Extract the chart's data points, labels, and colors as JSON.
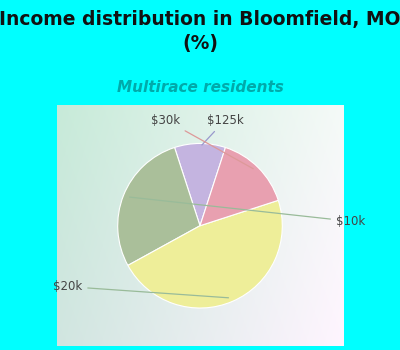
{
  "title": "Income distribution in Bloomfield, MO\n(%)",
  "subtitle": "Multirace residents",
  "subtitle_color": "#00AAAA",
  "title_color": "#111111",
  "title_fontsize": 13.5,
  "subtitle_fontsize": 11,
  "slices": [
    {
      "label": "$125k",
      "value": 10,
      "color": "#C4B4E0"
    },
    {
      "label": "$10k",
      "value": 28,
      "color": "#AABF9A"
    },
    {
      "label": "$20k",
      "value": 47,
      "color": "#EEEE99"
    },
    {
      "label": "$30k",
      "value": 15,
      "color": "#E8A0B0"
    }
  ],
  "top_bg_color": "#00FFFF",
  "chart_bg_top_left": "#C8E8D8",
  "chart_bg_bottom_right": "#E8F4F0",
  "start_angle": 72,
  "figsize": [
    4.0,
    3.5
  ],
  "dpi": 100,
  "label_fontsize": 8.5,
  "label_color": "#444444",
  "arrow_color_default": "#99BB99",
  "arrow_color_30k": "#DD9999",
  "arrow_color_125k": "#9999CC"
}
